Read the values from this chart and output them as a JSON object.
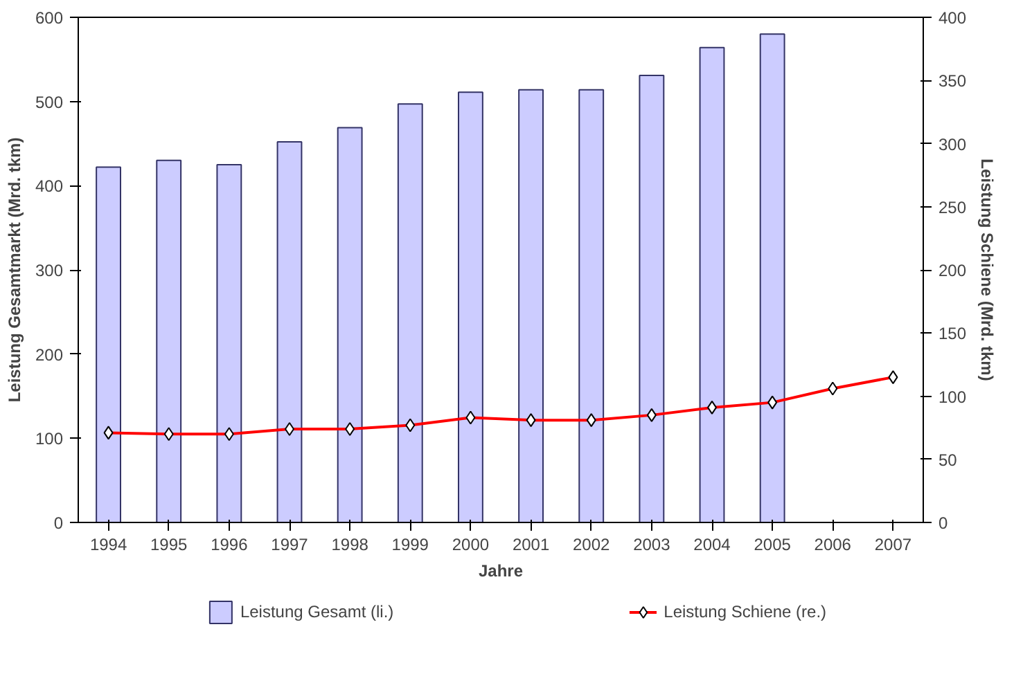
{
  "chart_data": {
    "type": "bar",
    "xlabel": "Jahre",
    "ylabel": "Leistung Gesamtmarkt (Mrd. tkm)",
    "y2label": "Leistung Schiene (Mrd. tkm)",
    "categories": [
      "1994",
      "1995",
      "1996",
      "1997",
      "1998",
      "1999",
      "2000",
      "2001",
      "2002",
      "2003",
      "2004",
      "2005",
      "2006",
      "2007"
    ],
    "series": [
      {
        "name": "Leistung Gesamt (li.)",
        "color": "#ccccff",
        "values": [
          422,
          430,
          425,
          452,
          469,
          497,
          511,
          514,
          514,
          531,
          564,
          580,
          null,
          null
        ]
      },
      {
        "name": "Leistung Schiene (re.)",
        "type": "line",
        "axis": "y2",
        "color": "#ff0000",
        "values": [
          71,
          70,
          70,
          74,
          74,
          77,
          83,
          81,
          81,
          85,
          91,
          95,
          106,
          115
        ]
      }
    ],
    "ylim": [
      0,
      600
    ],
    "yticks": [
      0,
      100,
      200,
      300,
      400,
      500,
      600
    ],
    "y2lim": [
      0,
      400
    ],
    "y2ticks": [
      0,
      50,
      100,
      150,
      200,
      250,
      300,
      350,
      400
    ],
    "marker": "diamond",
    "line_style": "solid",
    "grid": false,
    "legend": "bottom"
  }
}
